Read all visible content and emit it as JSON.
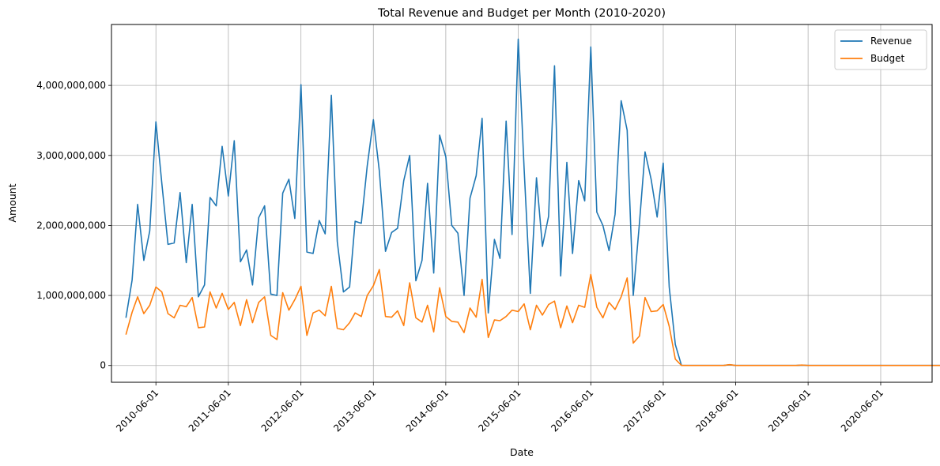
{
  "chart_data": {
    "type": "line",
    "title": "Total Revenue and Budget per Month (2010-2020)",
    "xlabel": "Date",
    "ylabel": "Amount",
    "x_ticks": [
      "2010-06-01",
      "2011-06-01",
      "2012-06-01",
      "2013-06-01",
      "2014-06-01",
      "2015-06-01",
      "2016-06-01",
      "2017-06-01",
      "2018-06-01",
      "2019-06-01",
      "2020-06-01"
    ],
    "y_ticks": [
      0,
      1000000000,
      2000000000,
      3000000000,
      4000000000
    ],
    "y_tick_labels": [
      "0",
      "1,000,000,000",
      "2,000,000,000",
      "3,000,000,000",
      "4,000,000,000"
    ],
    "xlim": [
      "2009-10-20",
      "2021-02-15"
    ],
    "ylim": [
      -240000000,
      4870000000
    ],
    "grid": true,
    "legend_position": "top-right",
    "colors": {
      "revenue": "#1f77b4",
      "budget": "#ff7f0e",
      "grid": "#b0b0b0"
    },
    "start_month": "2010-01",
    "series": [
      {
        "name": "Revenue",
        "values": [
          680000000,
          1220000000,
          2300000000,
          1500000000,
          1920000000,
          3480000000,
          2600000000,
          1730000000,
          1750000000,
          2470000000,
          1470000000,
          2300000000,
          980000000,
          1150000000,
          2400000000,
          2280000000,
          3130000000,
          2420000000,
          3210000000,
          1480000000,
          1650000000,
          1150000000,
          2110000000,
          2280000000,
          1020000000,
          1000000000,
          2460000000,
          2660000000,
          2100000000,
          4010000000,
          1620000000,
          1600000000,
          2070000000,
          1880000000,
          3860000000,
          1770000000,
          1050000000,
          1120000000,
          2060000000,
          2030000000,
          2850000000,
          3510000000,
          2780000000,
          1630000000,
          1900000000,
          1960000000,
          2640000000,
          3000000000,
          1210000000,
          1500000000,
          2600000000,
          1320000000,
          3290000000,
          2980000000,
          2000000000,
          1890000000,
          1000000000,
          2390000000,
          2710000000,
          3530000000,
          750000000,
          1800000000,
          1530000000,
          3490000000,
          1870000000,
          4660000000,
          2800000000,
          1030000000,
          2680000000,
          1700000000,
          2130000000,
          4280000000,
          1280000000,
          2900000000,
          1600000000,
          2640000000,
          2350000000,
          4550000000,
          2190000000,
          2000000000,
          1640000000,
          2160000000,
          3780000000,
          3360000000,
          1000000000,
          2030000000,
          3050000000,
          2660000000,
          2120000000,
          2890000000,
          1120000000,
          300000000,
          0,
          0,
          0,
          0,
          0,
          0,
          0,
          0,
          10000000,
          0,
          0,
          0,
          0,
          0,
          0,
          0,
          0,
          0,
          0,
          0,
          5000000,
          0,
          0,
          0,
          0,
          0,
          0,
          0,
          0,
          0,
          0,
          0,
          0,
          0,
          0,
          0,
          0,
          0,
          0,
          0,
          0,
          0,
          0,
          0,
          0
        ],
        "color": "#1f77b4"
      },
      {
        "name": "Budget",
        "values": [
          440000000,
          760000000,
          980000000,
          740000000,
          860000000,
          1120000000,
          1050000000,
          740000000,
          680000000,
          860000000,
          840000000,
          970000000,
          540000000,
          550000000,
          1050000000,
          820000000,
          1030000000,
          800000000,
          900000000,
          570000000,
          940000000,
          610000000,
          900000000,
          980000000,
          430000000,
          370000000,
          1040000000,
          790000000,
          940000000,
          1130000000,
          430000000,
          750000000,
          790000000,
          710000000,
          1130000000,
          530000000,
          510000000,
          610000000,
          750000000,
          700000000,
          1000000000,
          1140000000,
          1370000000,
          700000000,
          690000000,
          780000000,
          570000000,
          1180000000,
          680000000,
          620000000,
          860000000,
          480000000,
          1110000000,
          700000000,
          630000000,
          620000000,
          470000000,
          820000000,
          690000000,
          1230000000,
          400000000,
          650000000,
          640000000,
          700000000,
          790000000,
          770000000,
          880000000,
          510000000,
          860000000,
          720000000,
          870000000,
          920000000,
          540000000,
          850000000,
          610000000,
          860000000,
          830000000,
          1300000000,
          830000000,
          680000000,
          900000000,
          800000000,
          980000000,
          1250000000,
          320000000,
          420000000,
          970000000,
          770000000,
          780000000,
          870000000,
          560000000,
          90000000,
          0,
          0,
          0,
          0,
          0,
          0,
          0,
          0,
          12000000,
          0,
          0,
          0,
          0,
          0,
          0,
          0,
          0,
          0,
          0,
          0,
          6000000,
          0,
          0,
          0,
          0,
          0,
          0,
          0,
          0,
          0,
          0,
          0,
          0,
          0,
          0,
          0,
          0,
          0,
          0,
          0,
          0,
          0,
          0,
          0,
          0
        ],
        "color": "#ff7f0e"
      }
    ]
  }
}
